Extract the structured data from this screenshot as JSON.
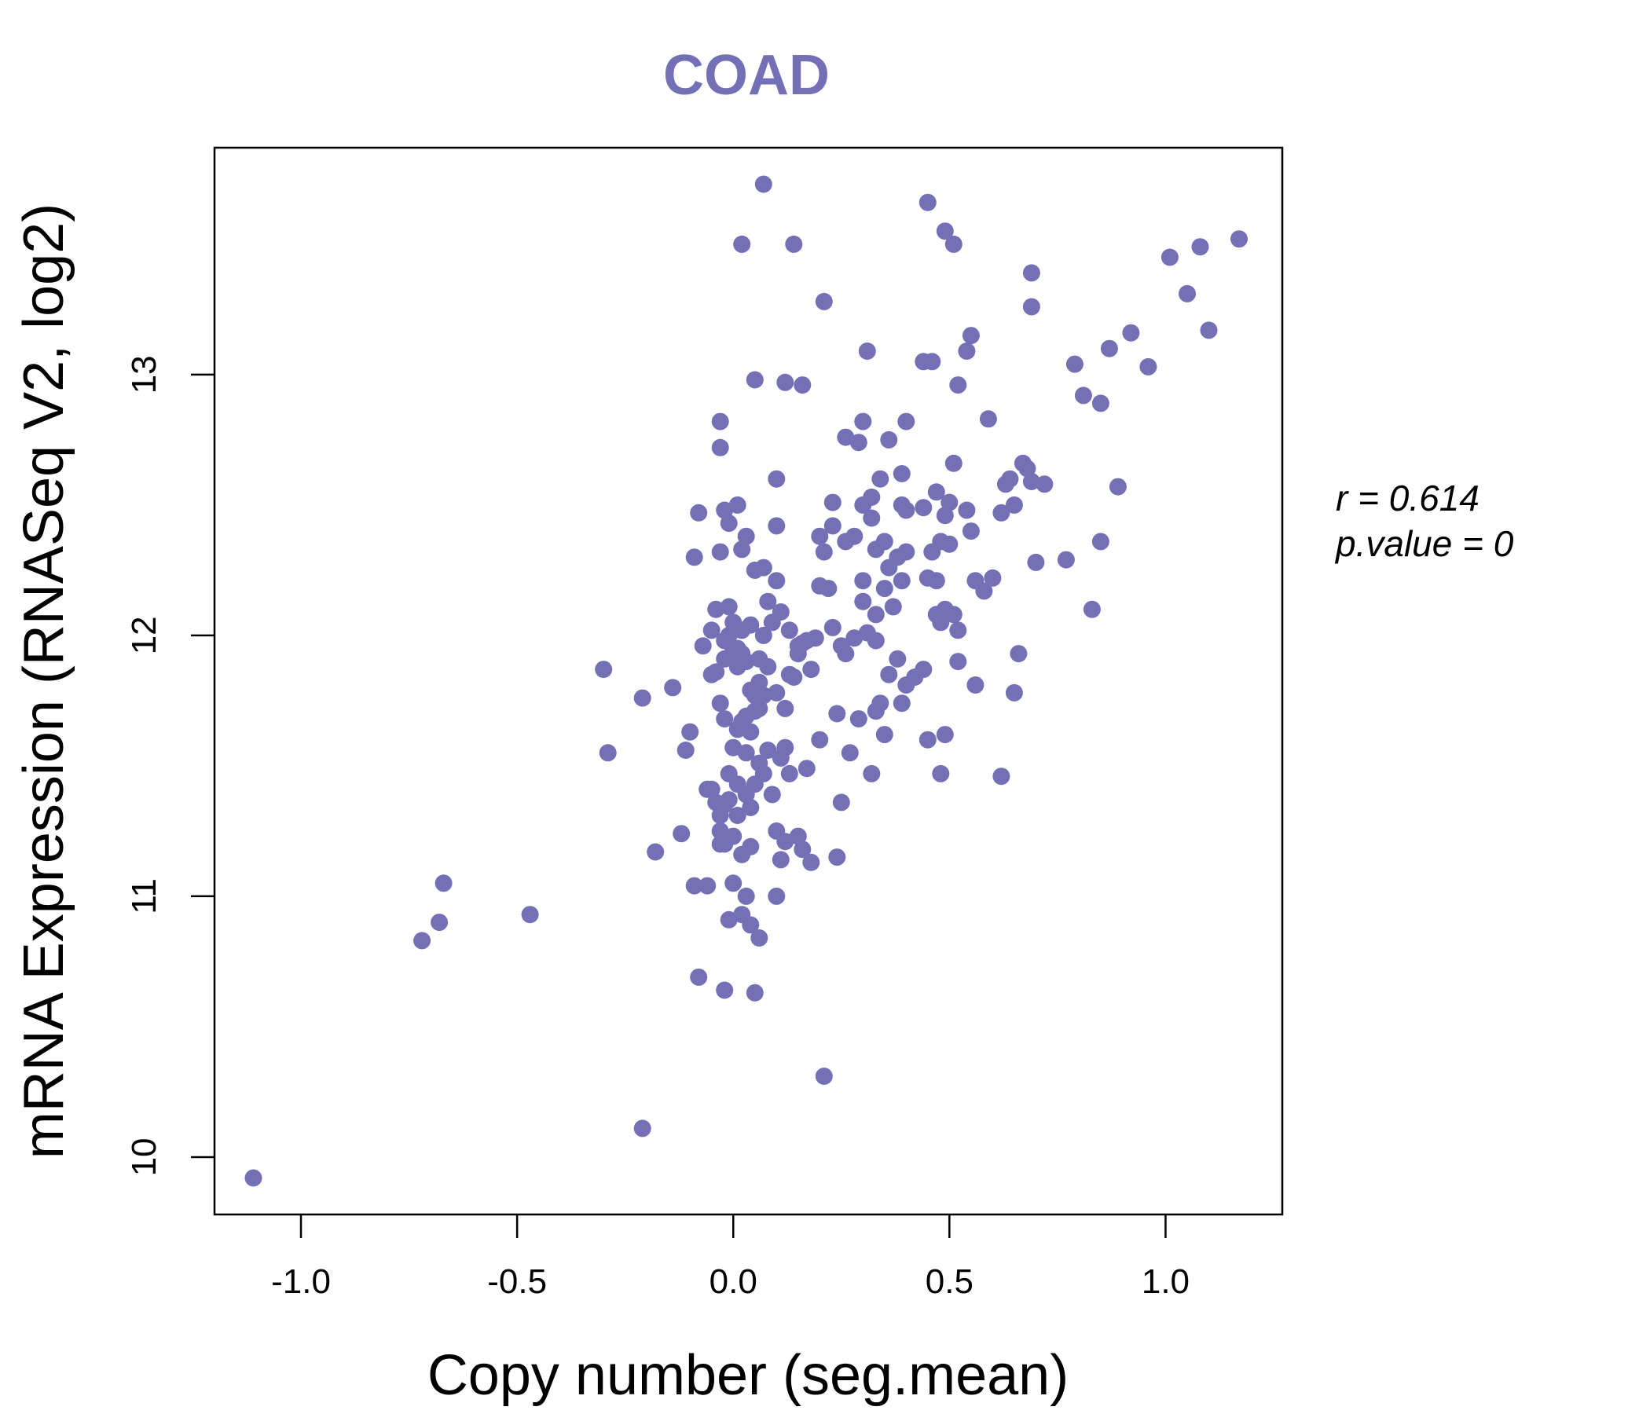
{
  "chart_data": {
    "type": "scatter",
    "title": "COAD",
    "xlabel": "Copy number (seg.mean)",
    "ylabel": "mRNA Expression (RNASeq V2, log2)",
    "xlim": [
      -1.2,
      1.27
    ],
    "ylim": [
      9.78,
      13.87
    ],
    "xticks": [
      -1.0,
      -0.5,
      0.0,
      0.5,
      1.0
    ],
    "xtick_labels": [
      "-1.0",
      "-0.5",
      "0.0",
      "0.5",
      "1.0"
    ],
    "yticks": [
      10,
      11,
      12,
      13
    ],
    "ytick_labels": [
      "10",
      "11",
      "12",
      "13"
    ],
    "grid": false,
    "point_color": "#7470b6",
    "stats": {
      "r": "r = 0.614",
      "p": "p.value = 0"
    },
    "points": [
      [
        -1.11,
        9.92
      ],
      [
        -0.21,
        10.11
      ],
      [
        0.21,
        10.31
      ],
      [
        -0.72,
        10.83
      ],
      [
        -0.68,
        10.9
      ],
      [
        -0.67,
        11.05
      ],
      [
        -0.47,
        10.93
      ],
      [
        -0.3,
        11.87
      ],
      [
        -0.29,
        11.55
      ],
      [
        -0.21,
        11.76
      ],
      [
        -0.18,
        11.17
      ],
      [
        -0.14,
        11.8
      ],
      [
        -0.12,
        11.24
      ],
      [
        -0.11,
        11.56
      ],
      [
        -0.1,
        11.63
      ],
      [
        -0.09,
        11.04
      ],
      [
        -0.08,
        10.69
      ],
      [
        -0.06,
        11.04
      ],
      [
        -0.05,
        11.41
      ],
      [
        -0.03,
        11.2
      ],
      [
        -0.02,
        11.35
      ],
      [
        -0.01,
        11.47
      ],
      [
        0.0,
        11.57
      ],
      [
        -0.02,
        11.68
      ],
      [
        -0.03,
        11.74
      ],
      [
        -0.04,
        11.86
      ],
      [
        -0.02,
        11.98
      ],
      [
        0.0,
        12.05
      ],
      [
        -0.01,
        12.11
      ],
      [
        -0.04,
        12.1
      ],
      [
        -0.03,
        12.32
      ],
      [
        -0.09,
        12.3
      ],
      [
        -0.08,
        12.47
      ],
      [
        -0.02,
        12.48
      ],
      [
        -0.01,
        12.43
      ],
      [
        0.01,
        12.5
      ],
      [
        -0.03,
        12.72
      ],
      [
        -0.03,
        12.82
      ],
      [
        0.0,
        11.05
      ],
      [
        -0.02,
        10.64
      ],
      [
        -0.01,
        10.91
      ],
      [
        0.02,
        10.93
      ],
      [
        0.04,
        10.89
      ],
      [
        0.05,
        10.63
      ],
      [
        0.06,
        10.84
      ],
      [
        0.02,
        11.16
      ],
      [
        0.04,
        11.19
      ],
      [
        0.01,
        11.31
      ],
      [
        0.03,
        11.39
      ],
      [
        0.05,
        11.43
      ],
      [
        0.07,
        11.47
      ],
      [
        0.08,
        11.56
      ],
      [
        0.09,
        11.39
      ],
      [
        0.1,
        11.25
      ],
      [
        0.11,
        11.14
      ],
      [
        0.12,
        11.21
      ],
      [
        0.15,
        11.23
      ],
      [
        0.16,
        11.18
      ],
      [
        0.18,
        11.13
      ],
      [
        0.24,
        11.15
      ],
      [
        0.25,
        11.36
      ],
      [
        0.13,
        11.47
      ],
      [
        0.17,
        11.49
      ],
      [
        0.2,
        11.6
      ],
      [
        0.24,
        11.7
      ],
      [
        0.27,
        11.55
      ],
      [
        0.29,
        11.68
      ],
      [
        0.32,
        11.47
      ],
      [
        0.33,
        11.71
      ],
      [
        0.34,
        11.74
      ],
      [
        0.35,
        11.62
      ],
      [
        0.36,
        11.85
      ],
      [
        0.38,
        11.91
      ],
      [
        0.39,
        11.74
      ],
      [
        0.4,
        11.81
      ],
      [
        0.42,
        11.84
      ],
      [
        0.44,
        11.87
      ],
      [
        0.45,
        11.6
      ],
      [
        0.48,
        11.47
      ],
      [
        0.49,
        11.62
      ],
      [
        0.52,
        11.9
      ],
      [
        0.56,
        11.81
      ],
      [
        0.62,
        11.46
      ],
      [
        0.65,
        11.78
      ],
      [
        0.66,
        11.93
      ],
      [
        0.01,
        11.64
      ],
      [
        0.03,
        11.69
      ],
      [
        0.05,
        11.77
      ],
      [
        0.06,
        11.82
      ],
      [
        0.08,
        11.88
      ],
      [
        0.1,
        11.78
      ],
      [
        0.12,
        11.72
      ],
      [
        0.14,
        11.84
      ],
      [
        0.16,
        11.97
      ],
      [
        0.18,
        11.87
      ],
      [
        0.07,
        12.0
      ],
      [
        0.09,
        12.05
      ],
      [
        0.11,
        12.09
      ],
      [
        0.13,
        12.02
      ],
      [
        0.15,
        11.96
      ],
      [
        0.04,
        12.04
      ],
      [
        0.02,
        11.93
      ],
      [
        0.06,
        11.91
      ],
      [
        0.03,
        11.9
      ],
      [
        0.08,
        12.13
      ],
      [
        0.1,
        12.21
      ],
      [
        0.07,
        12.26
      ],
      [
        0.05,
        12.25
      ],
      [
        0.02,
        12.33
      ],
      [
        0.03,
        12.38
      ],
      [
        0.1,
        12.42
      ],
      [
        0.1,
        12.6
      ],
      [
        0.2,
        12.38
      ],
      [
        0.21,
        12.32
      ],
      [
        0.23,
        12.42
      ],
      [
        0.2,
        12.19
      ],
      [
        0.22,
        12.18
      ],
      [
        0.23,
        12.03
      ],
      [
        0.25,
        11.96
      ],
      [
        0.26,
        11.93
      ],
      [
        0.28,
        11.99
      ],
      [
        0.31,
        12.01
      ],
      [
        0.33,
        11.98
      ],
      [
        0.3,
        12.13
      ],
      [
        0.3,
        12.21
      ],
      [
        0.33,
        12.08
      ],
      [
        0.35,
        12.18
      ],
      [
        0.37,
        12.11
      ],
      [
        0.39,
        12.21
      ],
      [
        0.36,
        12.26
      ],
      [
        0.33,
        12.33
      ],
      [
        0.35,
        12.36
      ],
      [
        0.32,
        12.45
      ],
      [
        0.3,
        12.5
      ],
      [
        0.28,
        12.38
      ],
      [
        0.26,
        12.36
      ],
      [
        0.23,
        12.51
      ],
      [
        0.32,
        12.53
      ],
      [
        0.34,
        12.6
      ],
      [
        0.39,
        12.62
      ],
      [
        0.39,
        12.5
      ],
      [
        0.4,
        12.48
      ],
      [
        0.38,
        12.3
      ],
      [
        0.4,
        12.32
      ],
      [
        0.45,
        12.22
      ],
      [
        0.47,
        12.21
      ],
      [
        0.46,
        12.32
      ],
      [
        0.48,
        12.36
      ],
      [
        0.5,
        12.35
      ],
      [
        0.44,
        12.49
      ],
      [
        0.47,
        12.55
      ],
      [
        0.49,
        12.46
      ],
      [
        0.5,
        12.51
      ],
      [
        0.48,
        12.05
      ],
      [
        0.47,
        12.08
      ],
      [
        0.49,
        12.1
      ],
      [
        0.51,
        12.08
      ],
      [
        0.52,
        12.02
      ],
      [
        0.54,
        12.48
      ],
      [
        0.55,
        12.4
      ],
      [
        0.56,
        12.21
      ],
      [
        0.58,
        12.17
      ],
      [
        0.6,
        12.22
      ],
      [
        0.62,
        12.47
      ],
      [
        0.63,
        12.58
      ],
      [
        0.64,
        12.6
      ],
      [
        0.65,
        12.5
      ],
      [
        0.67,
        12.66
      ],
      [
        0.68,
        12.64
      ],
      [
        0.69,
        12.59
      ],
      [
        0.7,
        12.28
      ],
      [
        0.72,
        12.58
      ],
      [
        0.77,
        12.29
      ],
      [
        0.83,
        12.1
      ],
      [
        0.85,
        12.36
      ],
      [
        0.89,
        12.57
      ],
      [
        0.26,
        12.76
      ],
      [
        0.29,
        12.74
      ],
      [
        0.3,
        12.82
      ],
      [
        0.36,
        12.75
      ],
      [
        0.4,
        12.82
      ],
      [
        0.51,
        12.66
      ],
      [
        0.59,
        12.83
      ],
      [
        0.44,
        13.05
      ],
      [
        0.46,
        13.05
      ],
      [
        0.52,
        12.96
      ],
      [
        0.54,
        13.09
      ],
      [
        0.55,
        13.15
      ],
      [
        0.31,
        13.09
      ],
      [
        0.21,
        13.28
      ],
      [
        0.05,
        12.98
      ],
      [
        0.12,
        12.97
      ],
      [
        0.16,
        12.96
      ],
      [
        0.02,
        13.5
      ],
      [
        0.14,
        13.5
      ],
      [
        0.07,
        13.73
      ],
      [
        0.45,
        13.66
      ],
      [
        0.49,
        13.55
      ],
      [
        0.51,
        13.5
      ],
      [
        0.69,
        13.39
      ],
      [
        0.69,
        13.26
      ],
      [
        0.79,
        13.04
      ],
      [
        0.81,
        12.92
      ],
      [
        0.85,
        12.89
      ],
      [
        0.87,
        13.1
      ],
      [
        0.92,
        13.16
      ],
      [
        0.96,
        13.03
      ],
      [
        1.01,
        13.45
      ],
      [
        1.05,
        13.31
      ],
      [
        1.08,
        13.49
      ],
      [
        1.1,
        13.17
      ],
      [
        1.17,
        13.52
      ],
      [
        -0.06,
        11.41
      ],
      [
        -0.04,
        11.36
      ],
      [
        -0.03,
        11.31
      ],
      [
        -0.01,
        11.37
      ],
      [
        0.01,
        11.43
      ],
      [
        0.04,
        11.34
      ],
      [
        -0.03,
        11.25
      ],
      [
        -0.02,
        11.2
      ],
      [
        0.0,
        11.23
      ],
      [
        -0.05,
        11.85
      ],
      [
        -0.07,
        11.96
      ],
      [
        -0.05,
        12.02
      ],
      [
        0.0,
        11.95
      ],
      [
        0.01,
        11.88
      ],
      [
        0.04,
        11.79
      ],
      [
        0.06,
        11.72
      ],
      [
        0.03,
        11.55
      ],
      [
        0.06,
        11.51
      ],
      [
        0.11,
        11.53
      ],
      [
        0.12,
        11.57
      ],
      [
        0.04,
        11.63
      ],
      [
        0.02,
        11.67
      ],
      [
        0.05,
        11.71
      ],
      [
        0.07,
        11.77
      ],
      [
        -0.02,
        11.91
      ],
      [
        0.0,
        11.93
      ],
      [
        0.01,
        11.95
      ],
      [
        -0.01,
        12.0
      ],
      [
        0.02,
        12.02
      ],
      [
        0.13,
        11.85
      ],
      [
        0.15,
        11.93
      ],
      [
        0.17,
        11.98
      ],
      [
        0.19,
        11.99
      ],
      [
        0.03,
        11.0
      ],
      [
        0.1,
        11.0
      ]
    ]
  }
}
